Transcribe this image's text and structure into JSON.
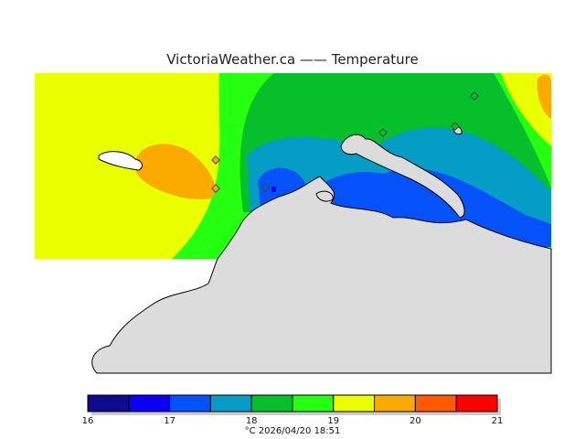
{
  "title": "VictoriaWeather.ca  ——  Temperature",
  "legend": {
    "ticks": [
      "16",
      "17",
      "18",
      "19",
      "20",
      "21"
    ],
    "colors": [
      "#0f0b8f",
      "#0a00f5",
      "#0552fa",
      "#059cc6",
      "#06bf2a",
      "#25ff10",
      "#eaff00",
      "#fbaa00",
      "#ff5a00",
      "#ff0000"
    ]
  },
  "footer": "°C  2026/04/20  18:51",
  "map": {
    "land_color": "#dcdcdc",
    "station_markers": 7
  }
}
